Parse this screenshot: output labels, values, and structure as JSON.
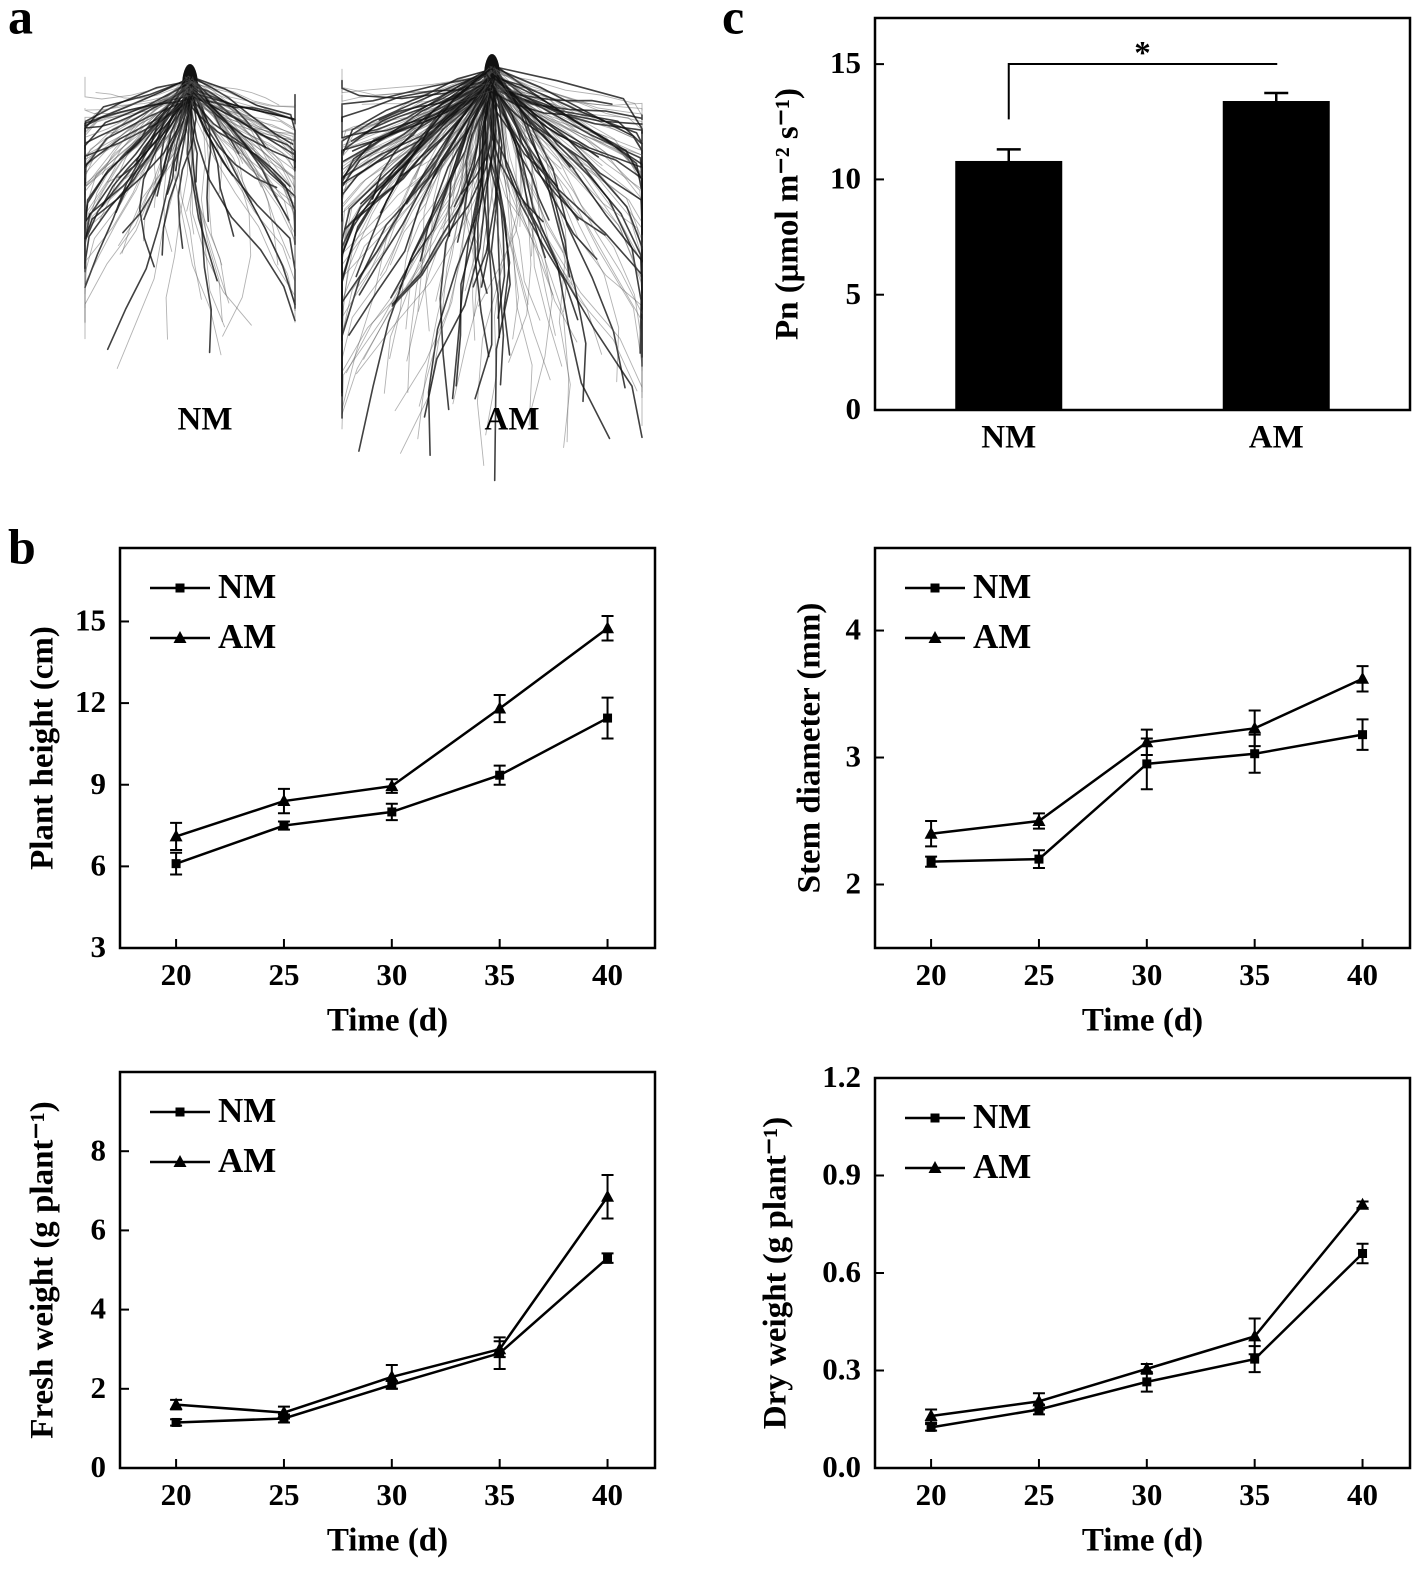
{
  "panel_labels": [
    "a",
    "b",
    "c"
  ],
  "root_images": {
    "labels": [
      "NM",
      "AM"
    ]
  },
  "chart_data": [
    {
      "type": "bar",
      "categories": [
        "NM",
        "AM"
      ],
      "values": [
        10.8,
        13.4
      ],
      "errors": [
        0.5,
        0.35
      ],
      "color": "#000000",
      "ylabel": "Pn (μmol m⁻² s⁻¹)",
      "ylim": [
        0,
        17
      ],
      "yticks": [
        0,
        5,
        10,
        15
      ],
      "significance": {
        "label": "*"
      }
    },
    {
      "type": "line",
      "x": [
        20,
        25,
        30,
        35,
        40
      ],
      "xlim": [
        17.4,
        42.2
      ],
      "xticks": [
        20,
        25,
        30,
        35,
        40
      ],
      "ylim": [
        3,
        17.7
      ],
      "yticks": [
        3,
        6,
        9,
        12,
        15
      ],
      "xlabel": "Time (d)",
      "ylabel": "Plant height (cm)",
      "legend": "upper left",
      "series": [
        {
          "name": "NM",
          "color": "#000000",
          "marker": "square",
          "values": [
            6.1,
            7.5,
            8.0,
            9.35,
            11.45
          ],
          "errors": [
            0.4,
            0.15,
            0.3,
            0.35,
            0.75
          ]
        },
        {
          "name": "AM",
          "color": "#000000",
          "marker": "triangle",
          "values": [
            7.1,
            8.4,
            8.95,
            11.8,
            14.75
          ],
          "errors": [
            0.5,
            0.45,
            0.25,
            0.5,
            0.45
          ]
        }
      ]
    },
    {
      "type": "line",
      "x": [
        20,
        25,
        30,
        35,
        40
      ],
      "xlim": [
        17.4,
        42.2
      ],
      "xticks": [
        20,
        25,
        30,
        35,
        40
      ],
      "ylim": [
        1.5,
        4.65
      ],
      "yticks": [
        2,
        3,
        4
      ],
      "xlabel": "Time (d)",
      "ylabel": "Stem diameter (mm)",
      "legend": "upper left",
      "series": [
        {
          "name": "NM",
          "color": "#000000",
          "marker": "square",
          "values": [
            2.18,
            2.2,
            2.95,
            3.03,
            3.18
          ],
          "errors": [
            0.04,
            0.07,
            0.2,
            0.15,
            0.12
          ]
        },
        {
          "name": "AM",
          "color": "#000000",
          "marker": "triangle",
          "values": [
            2.4,
            2.5,
            3.12,
            3.23,
            3.62
          ],
          "errors": [
            0.1,
            0.06,
            0.1,
            0.14,
            0.1
          ]
        }
      ]
    },
    {
      "type": "line",
      "x": [
        20,
        25,
        30,
        35,
        40
      ],
      "xlim": [
        17.4,
        42.2
      ],
      "xticks": [
        20,
        25,
        30,
        35,
        40
      ],
      "ylim": [
        0,
        10
      ],
      "yticks": [
        0,
        2,
        4,
        6,
        8
      ],
      "xlabel": "Time (d)",
      "ylabel": "Fresh weight (g plant⁻¹)",
      "legend": "upper left",
      "series": [
        {
          "name": "NM",
          "color": "#000000",
          "marker": "square",
          "values": [
            1.15,
            1.25,
            2.1,
            2.9,
            5.3
          ],
          "errors": [
            0.08,
            0.1,
            0.1,
            0.4,
            0.12
          ]
        },
        {
          "name": "AM",
          "color": "#000000",
          "marker": "triangle",
          "values": [
            1.6,
            1.4,
            2.3,
            3.0,
            6.85
          ],
          "errors": [
            0.12,
            0.15,
            0.3,
            0.2,
            0.55
          ]
        }
      ]
    },
    {
      "type": "line",
      "x": [
        20,
        25,
        30,
        35,
        40
      ],
      "xlim": [
        17.4,
        42.2
      ],
      "xticks": [
        20,
        25,
        30,
        35,
        40
      ],
      "ylim": [
        0,
        1.2
      ],
      "yticks": [
        {
          "value": 0,
          "label": "0.0"
        },
        0.3,
        0.6,
        0.9,
        1.2
      ],
      "xlabel": "Time (d)",
      "ylabel": "Dry weight (g plant⁻¹)",
      "legend": "upper left",
      "series": [
        {
          "name": "NM",
          "color": "#000000",
          "marker": "square",
          "values": [
            0.125,
            0.18,
            0.265,
            0.335,
            0.66
          ],
          "errors": [
            0.01,
            0.015,
            0.03,
            0.04,
            0.03
          ]
        },
        {
          "name": "AM",
          "color": "#000000",
          "marker": "triangle",
          "values": [
            0.16,
            0.205,
            0.305,
            0.405,
            0.81
          ],
          "errors": [
            0.02,
            0.025,
            0.015,
            0.055,
            0.01
          ]
        }
      ]
    }
  ]
}
